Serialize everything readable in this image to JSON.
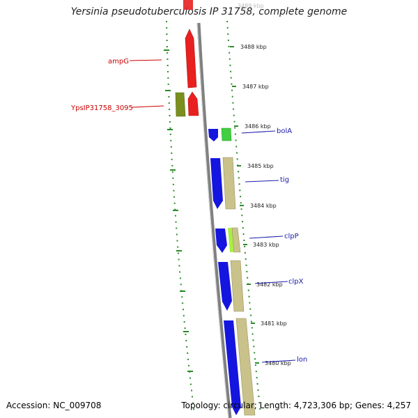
{
  "title": "Yersinia pseudotuberculosis IP 31758, complete genome",
  "footer": {
    "accession": "Accession: NC_009708",
    "summary": "Topology: circular; Length: 4,723,306 bp; Genes: 4,257"
  },
  "colors": {
    "reverse_strand_gene": "#e82020",
    "forward_strand_gene": "#1515e0",
    "reverse_strand_cds": "#7a8f1e",
    "forward_strand_cds": "#c9c28a",
    "other_feature": "#3fcf3f",
    "ruler_ticks": "#2a8a2a",
    "backbone": "#808080",
    "red_label": "#cc0000",
    "blue_label": "#1a1aaa"
  },
  "kbp_labels": [
    {
      "id": "k3489",
      "text": "3489 kbp"
    },
    {
      "id": "k3488",
      "text": "3488 kbp"
    },
    {
      "id": "k3487",
      "text": "3487 kbp"
    },
    {
      "id": "k3486",
      "text": "3486 kbp"
    },
    {
      "id": "k3485",
      "text": "3485 kbp"
    },
    {
      "id": "k3484",
      "text": "3484 kbp"
    },
    {
      "id": "k3483",
      "text": "3483 kbp"
    },
    {
      "id": "k3482",
      "text": "3482 kbp"
    },
    {
      "id": "k3481",
      "text": "3481 kbp"
    },
    {
      "id": "k3480",
      "text": "3480 kbp"
    }
  ],
  "gene_labels": [
    {
      "id": "ampG",
      "text": "ampG",
      "strand": "reverse"
    },
    {
      "id": "ypsip",
      "text": "YpsIP31758_3095",
      "strand": "reverse"
    },
    {
      "id": "bolA",
      "text": "bolA",
      "strand": "forward"
    },
    {
      "id": "tig",
      "text": "tig",
      "strand": "forward"
    },
    {
      "id": "clpP",
      "text": "clpP",
      "strand": "forward"
    },
    {
      "id": "clpX",
      "text": "clpX",
      "strand": "forward"
    },
    {
      "id": "lon",
      "text": "lon",
      "strand": "forward"
    }
  ]
}
